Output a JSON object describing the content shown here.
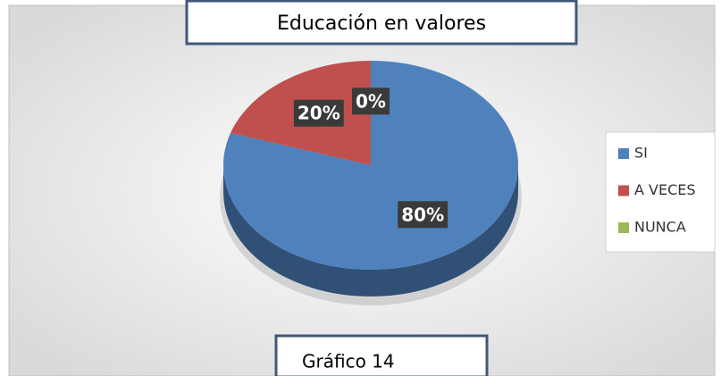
{
  "chart_data": {
    "type": "pie",
    "title": "Educación en valores",
    "caption": "Gráfico 14",
    "categories": [
      "SI",
      "A VECES",
      "NUNCA"
    ],
    "values": [
      80,
      20,
      0
    ],
    "value_labels": [
      "80%",
      "20%",
      "0%"
    ],
    "colors": [
      "#4f81bd",
      "#c0504d",
      "#9bbb59"
    ],
    "legend": "right"
  }
}
